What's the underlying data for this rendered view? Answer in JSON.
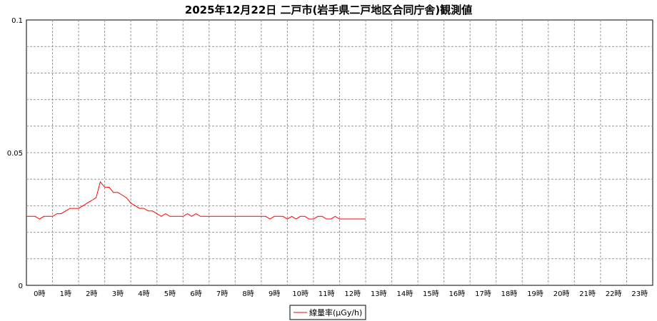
{
  "chart_data": {
    "type": "line",
    "title": "2025年12月22日 二戸市(岩手県二戸地区合同庁舎)観測値",
    "xlabel": "",
    "ylabel": "",
    "ylim": [
      0,
      0.1
    ],
    "xlim": [
      0,
      24
    ],
    "y_ticks": [
      {
        "value": 0,
        "label": "0"
      },
      {
        "value": 0.05,
        "label": "0.05"
      },
      {
        "value": 0.1,
        "label": "0.1"
      }
    ],
    "x_tick_labels": [
      "0時",
      "1時",
      "2時",
      "3時",
      "4時",
      "5時",
      "6時",
      "7時",
      "8時",
      "9時",
      "10時",
      "11時",
      "12時",
      "13時",
      "14時",
      "15時",
      "16時",
      "17時",
      "18時",
      "19時",
      "20時",
      "21時",
      "22時",
      "23時"
    ],
    "grid": true,
    "legend": {
      "position": "bottom-center",
      "entries": [
        "線量率(µGy/h)"
      ]
    },
    "series": [
      {
        "name": "線量率(µGy/h)",
        "color": "#ff0000",
        "x": [
          0,
          0.33,
          0.5,
          0.67,
          0.83,
          1.0,
          1.17,
          1.33,
          1.5,
          1.67,
          1.83,
          2.0,
          2.17,
          2.33,
          2.5,
          2.67,
          2.83,
          3.0,
          3.17,
          3.33,
          3.5,
          3.67,
          3.83,
          4.0,
          4.17,
          4.33,
          4.5,
          4.67,
          4.83,
          5.0,
          5.17,
          5.33,
          5.5,
          5.67,
          5.83,
          6.0,
          6.17,
          6.33,
          6.5,
          6.67,
          6.83,
          7.0,
          7.5,
          8.0,
          8.5,
          9.0,
          9.17,
          9.33,
          9.5,
          9.67,
          9.83,
          10.0,
          10.17,
          10.33,
          10.5,
          10.67,
          10.83,
          11.0,
          11.17,
          11.33,
          11.5,
          11.67,
          11.83,
          12.0,
          12.17,
          12.33,
          12.5,
          12.67,
          12.83,
          13.0
        ],
        "values": [
          0.026,
          0.026,
          0.025,
          0.026,
          0.026,
          0.026,
          0.027,
          0.027,
          0.028,
          0.029,
          0.029,
          0.029,
          0.03,
          0.031,
          0.032,
          0.033,
          0.039,
          0.037,
          0.037,
          0.035,
          0.035,
          0.034,
          0.033,
          0.031,
          0.03,
          0.029,
          0.029,
          0.028,
          0.028,
          0.027,
          0.026,
          0.027,
          0.026,
          0.026,
          0.026,
          0.026,
          0.027,
          0.026,
          0.027,
          0.026,
          0.026,
          0.026,
          0.026,
          0.026,
          0.026,
          0.026,
          0.026,
          0.025,
          0.026,
          0.026,
          0.026,
          0.025,
          0.026,
          0.025,
          0.026,
          0.026,
          0.025,
          0.025,
          0.026,
          0.026,
          0.025,
          0.025,
          0.026,
          0.025,
          0.025,
          0.025,
          0.025,
          0.025,
          0.025,
          0.025
        ]
      }
    ]
  }
}
